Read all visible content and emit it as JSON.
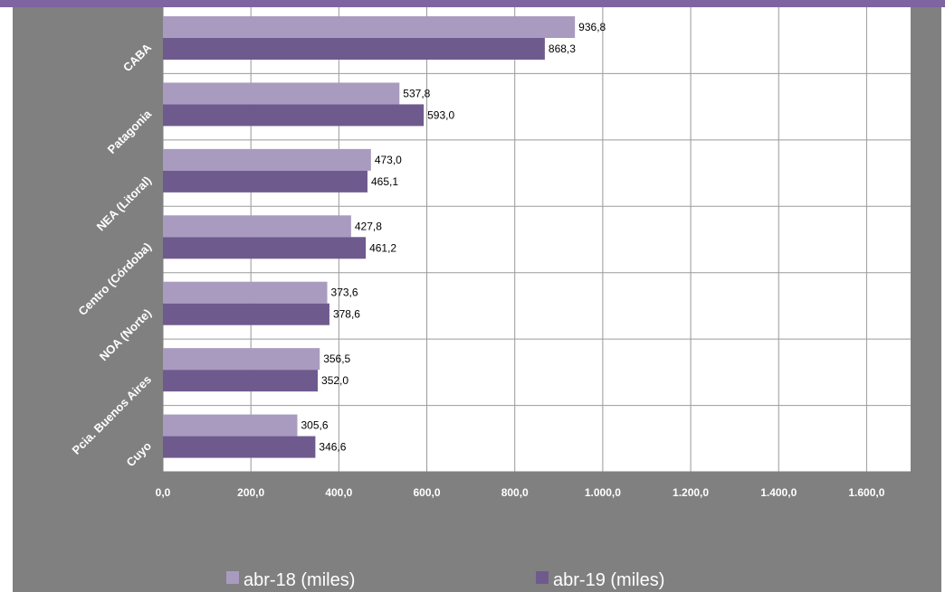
{
  "chart_data": {
    "type": "bar",
    "orientation": "horizontal",
    "title": "",
    "xlabel": "",
    "ylabel": "",
    "categories": [
      "CABA",
      "Patagonia",
      "NEA (Litoral)",
      "Centro (Córdoba)",
      "NOA (Norte)",
      "Pcia. Buenos Aires",
      "Cuyo"
    ],
    "series": [
      {
        "name": "abr-18 (miles)",
        "color": "#a99bbf",
        "values": [
          936.8,
          537.8,
          473.0,
          427.8,
          373.6,
          356.5,
          305.6
        ],
        "labels": [
          "936,8",
          "537,8",
          "473,0",
          "427,8",
          "373,6",
          "356,5",
          "305,6"
        ]
      },
      {
        "name": "abr-19 (miles)",
        "color": "#6f5a8e",
        "values": [
          868.3,
          593.0,
          465.1,
          461.2,
          378.6,
          352.0,
          346.6
        ],
        "labels": [
          "868,3",
          "593,0",
          "465,1",
          "461,2",
          "378,6",
          "352,0",
          "346,6"
        ]
      }
    ],
    "xlim": [
      0,
      1700
    ],
    "xticks": [
      0,
      200,
      400,
      600,
      800,
      1000,
      1200,
      1400,
      1600
    ],
    "xtick_labels": [
      "0,0",
      "200,0",
      "400,0",
      "600,0",
      "800,0",
      "1.000,0",
      "1.200,0",
      "1.400,0",
      "1.600,0"
    ],
    "grid": true,
    "legend_position": "bottom"
  }
}
